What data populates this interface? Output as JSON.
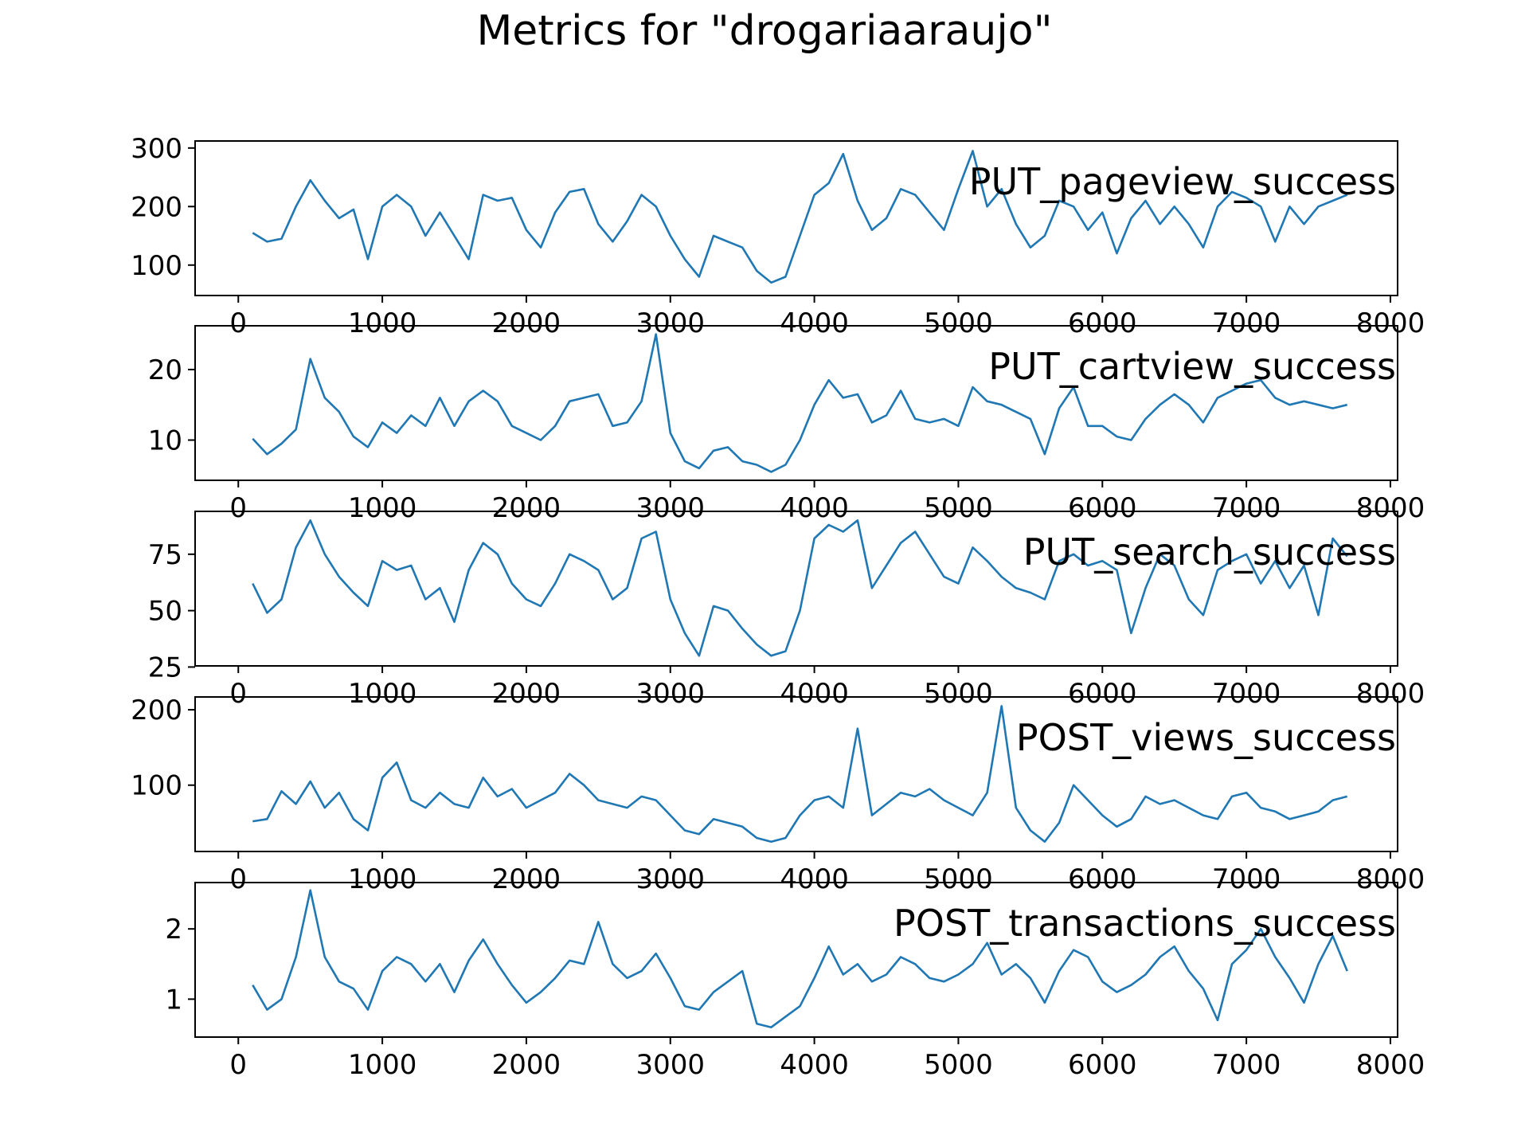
{
  "figure": {
    "title": "Metrics for \"drogariaaraujo\""
  },
  "style": {
    "line_color": "#1f77b4",
    "axis_color": "#000000",
    "background": "#ffffff"
  },
  "chart_data": [
    {
      "type": "line",
      "label": "PUT_pageview_success",
      "xlim": [
        -300,
        8050
      ],
      "ylim": [
        48,
        312
      ],
      "xticks": [
        0,
        1000,
        2000,
        3000,
        4000,
        5000,
        6000,
        7000,
        8000
      ],
      "yticks": [
        100,
        200,
        300
      ],
      "grid": false,
      "x": [
        100,
        200,
        300,
        400,
        500,
        600,
        700,
        800,
        900,
        1000,
        1100,
        1200,
        1300,
        1400,
        1500,
        1600,
        1700,
        1800,
        1900,
        2000,
        2100,
        2200,
        2300,
        2400,
        2500,
        2600,
        2700,
        2800,
        2900,
        3000,
        3100,
        3200,
        3300,
        3400,
        3500,
        3600,
        3700,
        3800,
        3900,
        4000,
        4100,
        4200,
        4300,
        4400,
        4500,
        4600,
        4700,
        4800,
        4900,
        5000,
        5100,
        5200,
        5300,
        5400,
        5500,
        5600,
        5700,
        5800,
        5900,
        6000,
        6100,
        6200,
        6300,
        6400,
        6500,
        6600,
        6700,
        6800,
        6900,
        7000,
        7100,
        7200,
        7300,
        7400,
        7500,
        7600,
        7700
      ],
      "y": [
        155,
        140,
        145,
        200,
        245,
        210,
        180,
        195,
        110,
        200,
        220,
        200,
        150,
        190,
        150,
        110,
        220,
        210,
        215,
        160,
        130,
        190,
        225,
        230,
        170,
        140,
        175,
        220,
        200,
        150,
        110,
        80,
        150,
        140,
        130,
        90,
        70,
        80,
        150,
        220,
        240,
        290,
        210,
        160,
        180,
        230,
        220,
        190,
        160,
        230,
        295,
        200,
        230,
        170,
        130,
        150,
        210,
        200,
        160,
        190,
        120,
        180,
        210,
        170,
        200,
        170,
        130,
        200,
        225,
        215,
        200,
        140,
        200,
        170,
        200,
        210,
        220
      ]
    },
    {
      "type": "line",
      "label": "PUT_cartview_success",
      "xlim": [
        -300,
        8050
      ],
      "ylim": [
        4.3,
        26.2
      ],
      "xticks": [
        0,
        1000,
        2000,
        3000,
        4000,
        5000,
        6000,
        7000,
        8000
      ],
      "yticks": [
        10,
        20
      ],
      "grid": false,
      "x": [
        100,
        200,
        300,
        400,
        500,
        600,
        700,
        800,
        900,
        1000,
        1100,
        1200,
        1300,
        1400,
        1500,
        1600,
        1700,
        1800,
        1900,
        2000,
        2100,
        2200,
        2300,
        2400,
        2500,
        2600,
        2700,
        2800,
        2900,
        3000,
        3100,
        3200,
        3300,
        3400,
        3500,
        3600,
        3700,
        3800,
        3900,
        4000,
        4100,
        4200,
        4300,
        4400,
        4500,
        4600,
        4700,
        4800,
        4900,
        5000,
        5100,
        5200,
        5300,
        5400,
        5500,
        5600,
        5700,
        5800,
        5900,
        6000,
        6100,
        6200,
        6300,
        6400,
        6500,
        6600,
        6700,
        6800,
        6900,
        7000,
        7100,
        7200,
        7300,
        7400,
        7500,
        7600,
        7700
      ],
      "y": [
        10.2,
        8.0,
        9.5,
        11.5,
        21.5,
        16.0,
        14.0,
        10.5,
        9.0,
        12.5,
        11.0,
        13.5,
        12.0,
        16.0,
        12.0,
        15.5,
        17.0,
        15.5,
        12.0,
        11.0,
        10.0,
        12.0,
        15.5,
        16.0,
        16.5,
        12.0,
        12.5,
        15.5,
        25.0,
        11.0,
        7.0,
        6.0,
        8.5,
        9.0,
        7.0,
        6.5,
        5.5,
        6.5,
        10.0,
        15.0,
        18.5,
        16.0,
        16.5,
        12.5,
        13.5,
        17.0,
        13.0,
        12.5,
        13.0,
        12.0,
        17.5,
        15.5,
        15.0,
        14.0,
        13.0,
        8.0,
        14.5,
        17.5,
        12.0,
        12.0,
        10.5,
        10.0,
        13.0,
        15.0,
        16.5,
        15.0,
        12.5,
        16.0,
        17.0,
        18.0,
        18.5,
        16.0,
        15.0,
        15.5,
        15.0,
        14.5,
        15.0
      ]
    },
    {
      "type": "line",
      "label": "PUT_search_success",
      "xlim": [
        -300,
        8050
      ],
      "ylim": [
        25.5,
        94
      ],
      "xticks": [
        0,
        1000,
        2000,
        3000,
        4000,
        5000,
        6000,
        7000,
        8000
      ],
      "yticks": [
        25,
        50,
        75
      ],
      "grid": false,
      "x": [
        100,
        200,
        300,
        400,
        500,
        600,
        700,
        800,
        900,
        1000,
        1100,
        1200,
        1300,
        1400,
        1500,
        1600,
        1700,
        1800,
        1900,
        2000,
        2100,
        2200,
        2300,
        2400,
        2500,
        2600,
        2700,
        2800,
        2900,
        3000,
        3100,
        3200,
        3300,
        3400,
        3500,
        3600,
        3700,
        3800,
        3900,
        4000,
        4100,
        4200,
        4300,
        4400,
        4500,
        4600,
        4700,
        4800,
        4900,
        5000,
        5100,
        5200,
        5300,
        5400,
        5500,
        5600,
        5700,
        5800,
        5900,
        6000,
        6100,
        6200,
        6300,
        6400,
        6500,
        6600,
        6700,
        6800,
        6900,
        7000,
        7100,
        7200,
        7300,
        7400,
        7500,
        7600,
        7700
      ],
      "y": [
        62,
        49,
        55,
        78,
        90,
        75,
        65,
        58,
        52,
        72,
        68,
        70,
        55,
        60,
        45,
        68,
        80,
        75,
        62,
        55,
        52,
        62,
        75,
        72,
        68,
        55,
        60,
        82,
        85,
        55,
        40,
        30,
        52,
        50,
        42,
        35,
        30,
        32,
        50,
        82,
        88,
        85,
        90,
        60,
        70,
        80,
        85,
        75,
        65,
        62,
        78,
        72,
        65,
        60,
        58,
        55,
        72,
        75,
        70,
        72,
        68,
        40,
        60,
        75,
        70,
        55,
        48,
        68,
        72,
        75,
        62,
        72,
        60,
        70,
        48,
        82,
        74
      ]
    },
    {
      "type": "line",
      "label": "POST_views_success",
      "xlim": [
        -300,
        8050
      ],
      "ylim": [
        12,
        217
      ],
      "xticks": [
        0,
        1000,
        2000,
        3000,
        4000,
        5000,
        6000,
        7000,
        8000
      ],
      "yticks": [
        100,
        200
      ],
      "grid": false,
      "x": [
        100,
        200,
        300,
        400,
        500,
        600,
        700,
        800,
        900,
        1000,
        1100,
        1200,
        1300,
        1400,
        1500,
        1600,
        1700,
        1800,
        1900,
        2000,
        2100,
        2200,
        2300,
        2400,
        2500,
        2600,
        2700,
        2800,
        2900,
        3000,
        3100,
        3200,
        3300,
        3400,
        3500,
        3600,
        3700,
        3800,
        3900,
        4000,
        4100,
        4200,
        4300,
        4400,
        4500,
        4600,
        4700,
        4800,
        4900,
        5000,
        5100,
        5200,
        5300,
        5400,
        5500,
        5600,
        5700,
        5800,
        5900,
        6000,
        6100,
        6200,
        6300,
        6400,
        6500,
        6600,
        6700,
        6800,
        6900,
        7000,
        7100,
        7200,
        7300,
        7400,
        7500,
        7600,
        7700
      ],
      "y": [
        52,
        55,
        92,
        75,
        105,
        70,
        90,
        55,
        40,
        110,
        130,
        80,
        70,
        90,
        75,
        70,
        110,
        85,
        95,
        70,
        80,
        90,
        115,
        100,
        80,
        75,
        70,
        85,
        80,
        60,
        40,
        35,
        55,
        50,
        45,
        30,
        25,
        30,
        60,
        80,
        85,
        70,
        175,
        60,
        75,
        90,
        85,
        95,
        80,
        70,
        60,
        90,
        205,
        70,
        40,
        25,
        50,
        100,
        80,
        60,
        45,
        55,
        85,
        75,
        80,
        70,
        60,
        55,
        85,
        90,
        70,
        65,
        55,
        60,
        65,
        80,
        85
      ]
    },
    {
      "type": "line",
      "label": "POST_transactions_success",
      "xlim": [
        -300,
        8050
      ],
      "ylim": [
        0.46,
        2.66
      ],
      "xticks": [
        0,
        1000,
        2000,
        3000,
        4000,
        5000,
        6000,
        7000,
        8000
      ],
      "yticks": [
        1,
        2
      ],
      "grid": false,
      "x": [
        100,
        200,
        300,
        400,
        500,
        600,
        700,
        800,
        900,
        1000,
        1100,
        1200,
        1300,
        1400,
        1500,
        1600,
        1700,
        1800,
        1900,
        2000,
        2100,
        2200,
        2300,
        2400,
        2500,
        2600,
        2700,
        2800,
        2900,
        3000,
        3100,
        3200,
        3300,
        3400,
        3500,
        3600,
        3700,
        3800,
        3900,
        4000,
        4100,
        4200,
        4300,
        4400,
        4500,
        4600,
        4700,
        4800,
        4900,
        5000,
        5100,
        5200,
        5300,
        5400,
        5500,
        5600,
        5700,
        5800,
        5900,
        6000,
        6100,
        6200,
        6300,
        6400,
        6500,
        6600,
        6700,
        6800,
        6900,
        7000,
        7100,
        7200,
        7300,
        7400,
        7500,
        7600,
        7700
      ],
      "y": [
        1.2,
        0.85,
        1.0,
        1.6,
        2.55,
        1.6,
        1.25,
        1.15,
        0.85,
        1.4,
        1.6,
        1.5,
        1.25,
        1.5,
        1.1,
        1.55,
        1.85,
        1.5,
        1.2,
        0.95,
        1.1,
        1.3,
        1.55,
        1.5,
        2.1,
        1.5,
        1.3,
        1.4,
        1.65,
        1.3,
        0.9,
        0.85,
        1.1,
        1.25,
        1.4,
        0.65,
        0.6,
        0.75,
        0.9,
        1.3,
        1.75,
        1.35,
        1.5,
        1.25,
        1.35,
        1.6,
        1.5,
        1.3,
        1.25,
        1.35,
        1.5,
        1.8,
        1.35,
        1.5,
        1.3,
        0.95,
        1.4,
        1.7,
        1.6,
        1.25,
        1.1,
        1.2,
        1.35,
        1.6,
        1.75,
        1.4,
        1.15,
        0.7,
        1.5,
        1.7,
        2.0,
        1.6,
        1.3,
        0.95,
        1.5,
        1.9,
        1.4
      ]
    }
  ]
}
